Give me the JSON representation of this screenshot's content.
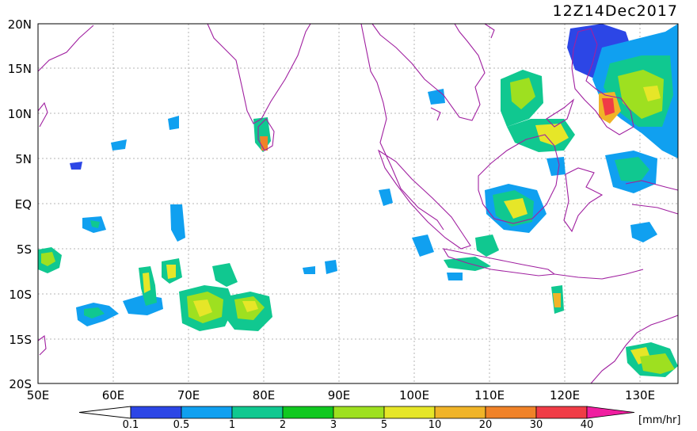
{
  "title": "12Z14Dec2017",
  "lat_labels": [
    "20N",
    "15N",
    "10N",
    "5N",
    "EQ",
    "5S",
    "10S",
    "15S",
    "20S"
  ],
  "lon_labels": [
    "50E",
    "60E",
    "70E",
    "80E",
    "90E",
    "100E",
    "110E",
    "120E",
    "130E"
  ],
  "map": {
    "lon_range": [
      50,
      135
    ],
    "lat_range": [
      -20,
      20
    ],
    "grid": true,
    "coastline_color": "#a020a0",
    "grid_color": "#b4b4b4"
  },
  "colorbar": {
    "unit": "[mm/hr]",
    "ticks": [
      "0.1",
      "0.5",
      "1",
      "2",
      "3",
      "5",
      "10",
      "20",
      "30",
      "40"
    ],
    "colors": [
      "#2c46e6",
      "#10a0f0",
      "#10c890",
      "#10c820",
      "#9ee020",
      "#e6e628",
      "#f0b428",
      "#f08228",
      "#f03c46",
      "#f01ea0"
    ],
    "under_color": "#ffffff"
  }
}
